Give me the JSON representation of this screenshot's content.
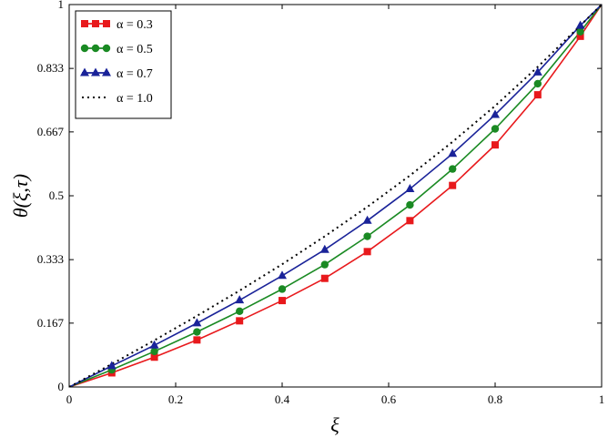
{
  "chart_data": {
    "type": "line",
    "xlabel": "ξ",
    "ylabel": "θ(ξ,τ)",
    "xlim": [
      0,
      1
    ],
    "ylim": [
      0,
      1
    ],
    "x_ticks": [
      0,
      0.2,
      0.4,
      0.6,
      0.8,
      1
    ],
    "x_tick_labels": [
      "0",
      "0.2",
      "0.4",
      "0.6",
      "0.8",
      "1"
    ],
    "y_ticks": [
      0,
      0.167,
      0.333,
      0.5,
      0.667,
      0.833,
      1
    ],
    "y_tick_labels": [
      "0",
      "0.167",
      "0.333",
      "0.5",
      "0.667",
      "0.833",
      "1"
    ],
    "grid": false,
    "legend_position": "top-left",
    "series": [
      {
        "name": "α = 0.3",
        "color": "#e8191c",
        "marker": "square",
        "dash": "solid",
        "x": [
          0,
          0.08,
          0.16,
          0.24,
          0.32,
          0.4,
          0.48,
          0.56,
          0.64,
          0.72,
          0.8,
          0.88,
          0.96,
          1.0
        ],
        "y": [
          0,
          0.037,
          0.078,
          0.123,
          0.173,
          0.226,
          0.284,
          0.354,
          0.435,
          0.527,
          0.633,
          0.764,
          0.917,
          1.0
        ]
      },
      {
        "name": "α = 0.5",
        "color": "#1a8a23",
        "marker": "circle",
        "dash": "solid",
        "x": [
          0,
          0.08,
          0.16,
          0.24,
          0.32,
          0.4,
          0.48,
          0.56,
          0.64,
          0.72,
          0.8,
          0.88,
          0.96,
          1.0
        ],
        "y": [
          0,
          0.045,
          0.093,
          0.144,
          0.198,
          0.256,
          0.32,
          0.394,
          0.476,
          0.57,
          0.675,
          0.793,
          0.929,
          1.0
        ]
      },
      {
        "name": "α = 0.7",
        "color": "#1a2399",
        "marker": "triangle",
        "dash": "solid",
        "x": [
          0,
          0.08,
          0.16,
          0.24,
          0.32,
          0.4,
          0.48,
          0.56,
          0.64,
          0.72,
          0.8,
          0.88,
          0.96,
          1.0
        ],
        "y": [
          0,
          0.055,
          0.109,
          0.167,
          0.227,
          0.291,
          0.359,
          0.435,
          0.518,
          0.61,
          0.712,
          0.823,
          0.945,
          1.0
        ]
      },
      {
        "name": "α = 1.0",
        "color": "#000000",
        "marker": "none",
        "dash": "dotted",
        "x": [
          0,
          0.08,
          0.16,
          0.24,
          0.32,
          0.4,
          0.48,
          0.56,
          0.64,
          0.72,
          0.8,
          0.88,
          0.96,
          1.0
        ],
        "y": [
          0,
          0.06,
          0.122,
          0.186,
          0.252,
          0.321,
          0.394,
          0.471,
          0.553,
          0.641,
          0.735,
          0.837,
          0.945,
          1.0
        ]
      }
    ]
  }
}
